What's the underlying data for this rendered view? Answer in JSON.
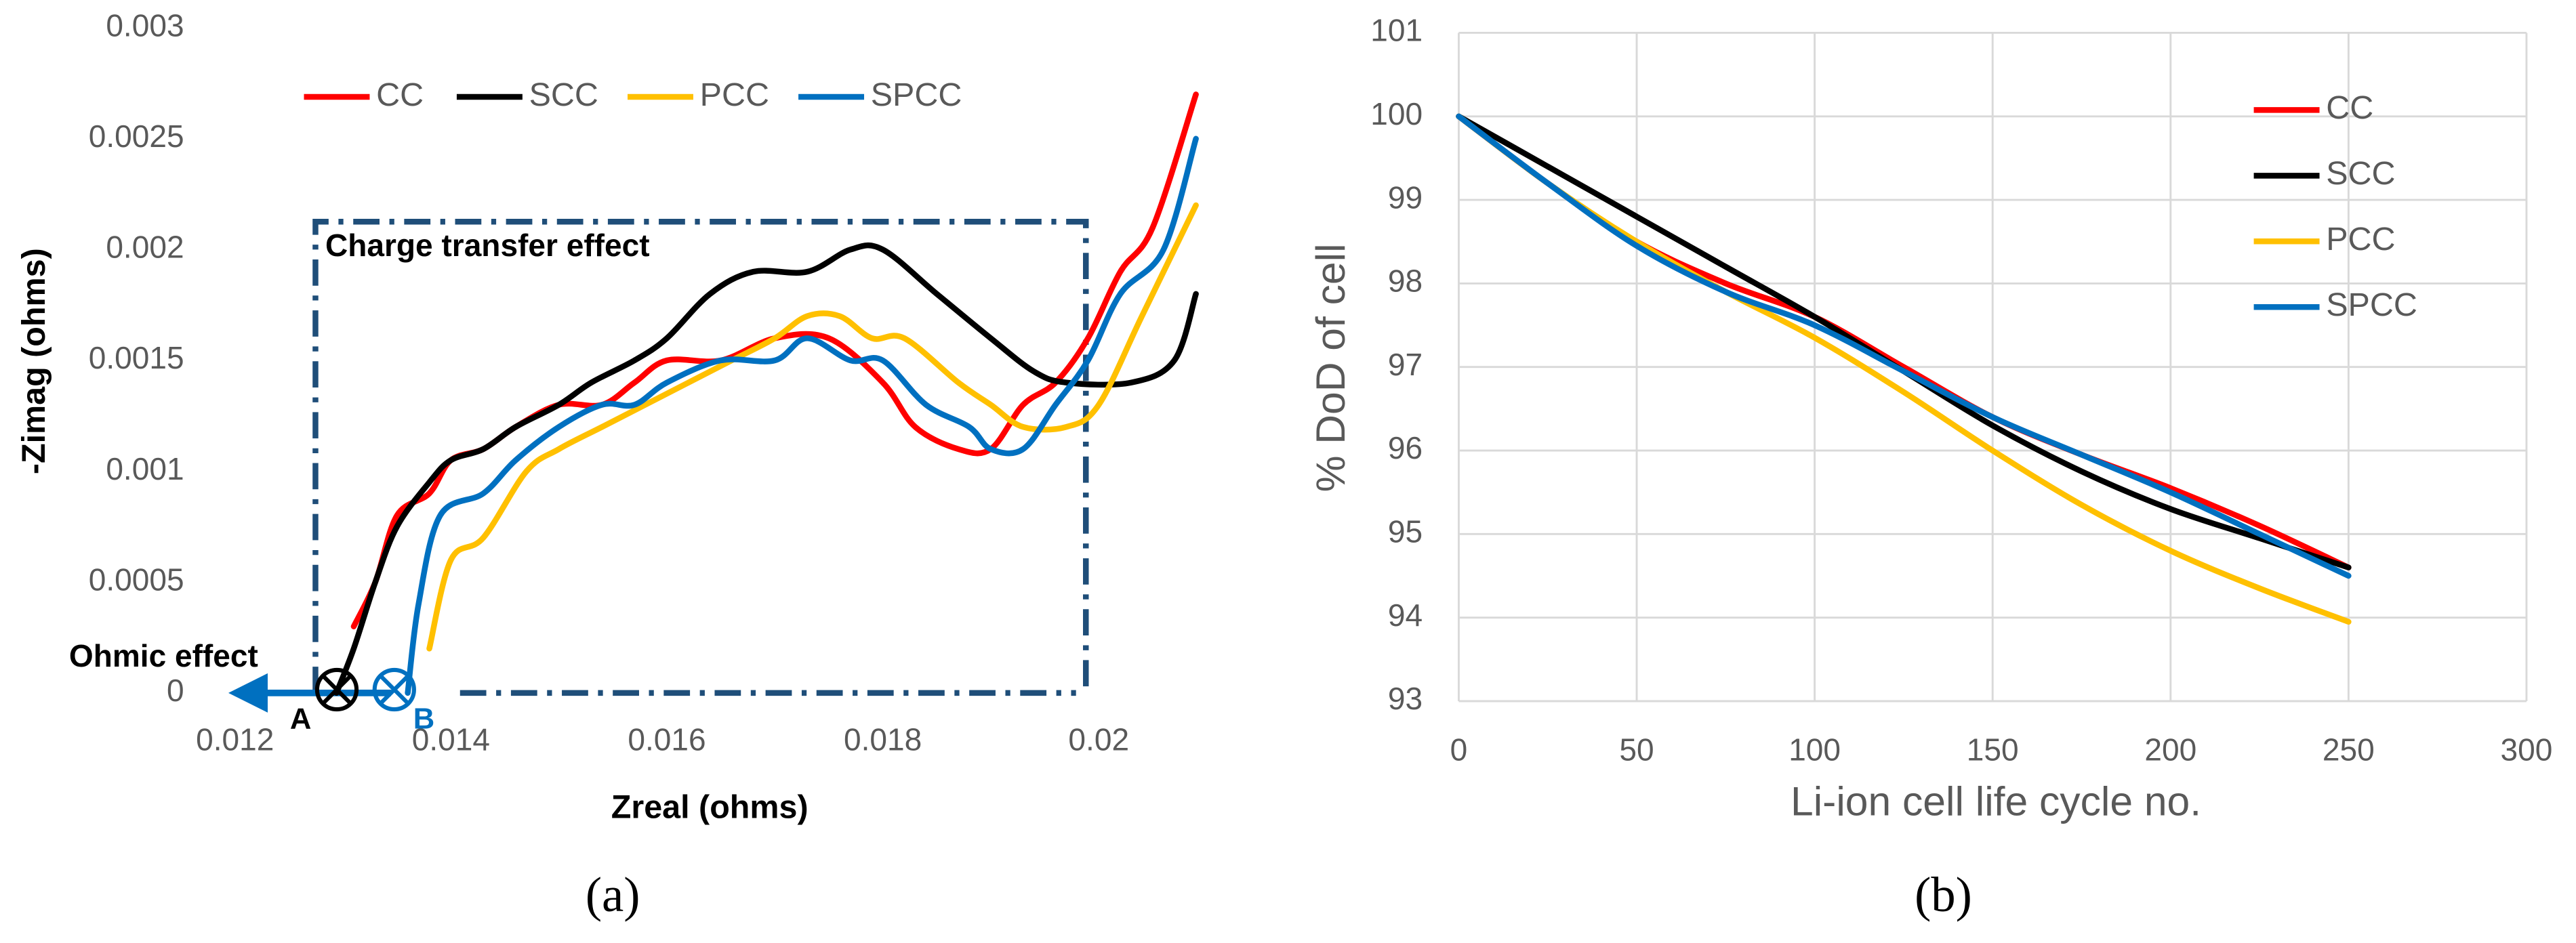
{
  "chart_data": [
    {
      "type": "line",
      "panel_label": "(a)",
      "xlabel": "Zreal (ohms)",
      "ylabel": "-Zimag (ohms)",
      "annotations": [
        "Charge transfer effect",
        "Ohmic effect",
        "A",
        "B"
      ],
      "xlim": [
        0.012,
        0.0209
      ],
      "xticks": [
        0.012,
        0.014,
        0.016,
        0.018,
        0.02
      ],
      "ylim": [
        0,
        0.003
      ],
      "yticks": [
        0,
        0.0005,
        0.001,
        0.0015,
        0.002,
        0.0025,
        0.003
      ],
      "legend": "top",
      "series": [
        {
          "name": "CC",
          "color": "#ff0000",
          "x": [
            0.0131,
            0.0133,
            0.0135,
            0.0138,
            0.014,
            0.0143,
            0.0146,
            0.015,
            0.0154,
            0.0157,
            0.016,
            0.0165,
            0.017,
            0.0175,
            0.018,
            0.0183,
            0.0187,
            0.019,
            0.0193,
            0.0196,
            0.0199,
            0.0202,
            0.0205,
            0.0209
          ],
          "values": [
            0.0003,
            0.0005,
            0.0008,
            0.0009,
            0.00105,
            0.0011,
            0.0012,
            0.0013,
            0.0013,
            0.0014,
            0.0015,
            0.0015,
            0.0016,
            0.0016,
            0.0014,
            0.0012,
            0.0011,
            0.0011,
            0.0013,
            0.0014,
            0.0016,
            0.0019,
            0.0021,
            0.0027
          ]
        },
        {
          "name": "SCC",
          "color": "#000000",
          "x": [
            0.01294,
            0.0131,
            0.0133,
            0.0135,
            0.0138,
            0.014,
            0.0143,
            0.0146,
            0.015,
            0.0153,
            0.0157,
            0.016,
            0.0164,
            0.0168,
            0.0173,
            0.0177,
            0.018,
            0.0185,
            0.019,
            0.0194,
            0.0197,
            0.0203,
            0.0207,
            0.0209
          ],
          "values": [
            0,
            0.0002,
            0.0005,
            0.00075,
            0.00095,
            0.00105,
            0.0011,
            0.0012,
            0.0013,
            0.0014,
            0.0015,
            0.0016,
            0.0018,
            0.0019,
            0.0019,
            0.002,
            0.002,
            0.0018,
            0.0016,
            0.00145,
            0.0014,
            0.0014,
            0.0015,
            0.0018
          ]
        },
        {
          "name": "PCC",
          "color": "#ffc000",
          "x": [
            0.0138,
            0.014,
            0.0143,
            0.0147,
            0.015,
            0.0154,
            0.0158,
            0.0162,
            0.0166,
            0.017,
            0.0173,
            0.0176,
            0.0179,
            0.0182,
            0.0187,
            0.019,
            0.0193,
            0.0197,
            0.02,
            0.0204,
            0.0209
          ],
          "values": [
            0.0002,
            0.0006,
            0.0007,
            0.001,
            0.0011,
            0.0012,
            0.0013,
            0.0014,
            0.0015,
            0.0016,
            0.0017,
            0.0017,
            0.0016,
            0.0016,
            0.0014,
            0.0013,
            0.0012,
            0.0012,
            0.0013,
            0.0017,
            0.0022
          ]
        },
        {
          "name": "SPCC",
          "color": "#0070c0",
          "x": [
            0.0136,
            0.0137,
            0.0139,
            0.0143,
            0.0146,
            0.015,
            0.0154,
            0.0157,
            0.016,
            0.0165,
            0.017,
            0.0173,
            0.0177,
            0.018,
            0.0184,
            0.0188,
            0.019,
            0.0193,
            0.0196,
            0.0199,
            0.0202,
            0.0206,
            0.0209
          ],
          "values": [
            0,
            0.0004,
            0.0008,
            0.0009,
            0.00105,
            0.0012,
            0.0013,
            0.0013,
            0.0014,
            0.0015,
            0.0015,
            0.0016,
            0.0015,
            0.0015,
            0.0013,
            0.0012,
            0.0011,
            0.0011,
            0.0013,
            0.0015,
            0.0018,
            0.002,
            0.0025
          ]
        }
      ]
    },
    {
      "type": "line",
      "panel_label": "(b)",
      "xlabel": "Li-ion cell life cycle no.",
      "ylabel": "% DoD of cell",
      "x": [
        0,
        25,
        50,
        75,
        100,
        125,
        150,
        175,
        200,
        225,
        250
      ],
      "xlim": [
        0,
        300
      ],
      "xticks": [
        0,
        50,
        100,
        150,
        200,
        250,
        300
      ],
      "ylim": [
        93,
        101
      ],
      "yticks": [
        93,
        94,
        95,
        96,
        97,
        98,
        99,
        100,
        101
      ],
      "grid": true,
      "legend": "upper right",
      "series": [
        {
          "name": "CC",
          "color": "#ff0000",
          "values": [
            100,
            99.2,
            98.5,
            98.0,
            97.6,
            97.0,
            96.4,
            95.95,
            95.55,
            95.1,
            94.6
          ]
        },
        {
          "name": "SCC",
          "color": "#000000",
          "values": [
            100,
            99.4,
            98.8,
            98.2,
            97.6,
            96.95,
            96.3,
            95.75,
            95.3,
            94.95,
            94.6
          ]
        },
        {
          "name": "PCC",
          "color": "#ffc000",
          "values": [
            100,
            99.2,
            98.5,
            97.9,
            97.35,
            96.7,
            96.0,
            95.35,
            94.8,
            94.35,
            93.95
          ]
        },
        {
          "name": "SPCC",
          "color": "#0070c0",
          "values": [
            100,
            99.2,
            98.45,
            97.9,
            97.5,
            96.95,
            96.4,
            95.95,
            95.5,
            95.0,
            94.5
          ]
        }
      ]
    }
  ]
}
